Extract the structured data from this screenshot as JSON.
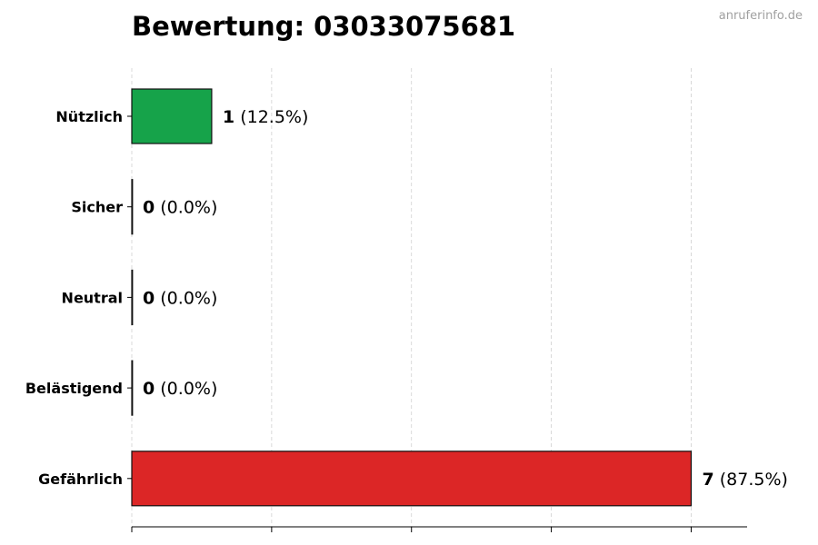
{
  "title": "Bewertung: 03033075681",
  "watermark": "anruferinfo.de",
  "chart_data": {
    "type": "bar",
    "orientation": "horizontal",
    "title": "Bewertung: 03033075681",
    "xlabel": "",
    "ylabel": "",
    "categories": [
      "Nützlich",
      "Sicher",
      "Neutral",
      "Belästigend",
      "Gefährlich"
    ],
    "values": [
      1,
      0,
      0,
      0,
      7
    ],
    "value_labels": [
      "1",
      "0",
      "0",
      "0",
      "7"
    ],
    "percent_labels": [
      "(12.5%)",
      "(0.0%)",
      "(0.0%)",
      "(0.0%)",
      "(87.5%)"
    ],
    "colors": [
      "#16a34a",
      "#9ca3af",
      "#6b7280",
      "#f59e0b",
      "#dc2626"
    ],
    "xlim": [
      0,
      7.7
    ],
    "grid": "x-dashed",
    "x_tick_labels": "none"
  }
}
